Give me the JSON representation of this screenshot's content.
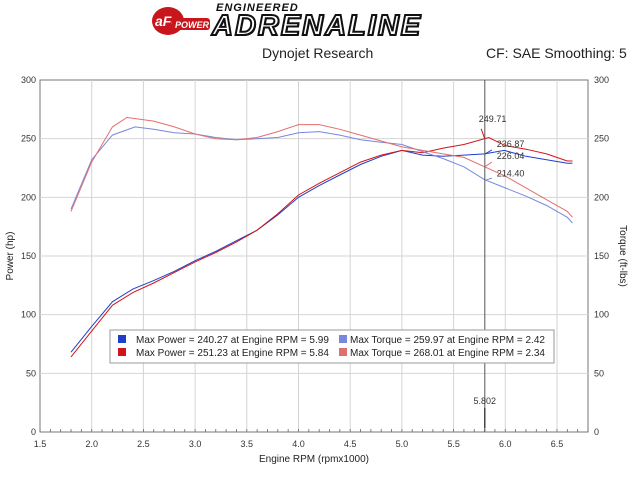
{
  "header": {
    "logo_text": "aFe POWER",
    "brand_small": "ENGINEERED",
    "brand_big": "ADRENALINE",
    "source": "Dynojet Research",
    "correction": "CF: SAE Smoothing: 5"
  },
  "colors": {
    "blue": "#1f3fc8",
    "red": "#d0151a",
    "light_blue": "#7788dd",
    "light_red": "#e07070",
    "cursor": "#555555"
  },
  "chart_data": {
    "type": "line",
    "xlabel": "Engine RPM (rpmx1000)",
    "ylabel_left": "Power (hp)",
    "ylabel_right": "Torque (ft-lbs)",
    "xlim": [
      1.5,
      6.8
    ],
    "ylim": [
      0,
      300
    ],
    "x_ticks": [
      "1.5",
      "2.0",
      "2.5",
      "3.0",
      "3.5",
      "4.0",
      "4.5",
      "5.0",
      "5.5",
      "6.0",
      "6.5"
    ],
    "y_ticks": [
      "0",
      "50",
      "100",
      "150",
      "200",
      "250",
      "300"
    ],
    "cursor": {
      "x": 5.802,
      "label": "5.802"
    },
    "cursor_labels": [
      {
        "text": "249.71",
        "series": "red-power",
        "x": 5.802,
        "y": 249.71
      },
      {
        "text": "236.87",
        "series": "blue-power",
        "x": 5.802,
        "y": 236.87
      },
      {
        "text": "226.04",
        "series": "red-torque",
        "x": 5.802,
        "y": 226.04
      },
      {
        "text": "214.40",
        "series": "blue-torque",
        "x": 5.802,
        "y": 214.4
      }
    ],
    "legend": [
      {
        "text": "Max Power = 240.27 at Engine RPM = 5.99",
        "color": "#1f3fc8"
      },
      {
        "text": "Max Power = 251.23 at Engine RPM = 5.84",
        "color": "#d0151a"
      },
      {
        "text": "Max Torque = 259.97 at Engine RPM = 2.42",
        "color": "#7788dd"
      },
      {
        "text": "Max Torque = 268.01 at Engine RPM = 2.34",
        "color": "#e07070"
      }
    ],
    "series": [
      {
        "id": "blue-power",
        "color": "#1f3fc8",
        "x": [
          1.8,
          2.0,
          2.2,
          2.4,
          2.6,
          2.8,
          3.0,
          3.2,
          3.4,
          3.6,
          3.8,
          4.0,
          4.2,
          4.4,
          4.6,
          4.8,
          5.0,
          5.2,
          5.4,
          5.6,
          5.8,
          5.99,
          6.2,
          6.4,
          6.6,
          6.65
        ],
        "y": [
          68,
          90,
          111,
          122,
          129,
          137,
          146,
          154,
          163,
          172,
          185,
          200,
          210,
          219,
          228,
          235,
          240,
          236,
          235,
          236,
          237,
          240,
          235,
          232,
          229,
          229
        ]
      },
      {
        "id": "red-power",
        "color": "#d0151a",
        "x": [
          1.8,
          2.0,
          2.2,
          2.4,
          2.6,
          2.8,
          3.0,
          3.2,
          3.4,
          3.6,
          3.8,
          4.0,
          4.2,
          4.4,
          4.6,
          4.8,
          5.0,
          5.2,
          5.4,
          5.6,
          5.84,
          6.0,
          6.2,
          6.4,
          6.6,
          6.65
        ],
        "y": [
          64,
          86,
          108,
          119,
          127,
          136,
          145,
          153,
          162,
          172,
          186,
          202,
          212,
          221,
          230,
          236,
          240,
          238,
          242,
          245,
          251,
          244,
          241,
          237,
          231,
          231
        ]
      },
      {
        "id": "blue-torque",
        "color": "#7788dd",
        "x": [
          1.8,
          2.0,
          2.2,
          2.42,
          2.6,
          2.8,
          3.0,
          3.2,
          3.4,
          3.6,
          3.8,
          4.0,
          4.2,
          4.4,
          4.6,
          4.8,
          5.0,
          5.2,
          5.4,
          5.6,
          5.8,
          6.0,
          6.2,
          6.4,
          6.6,
          6.65
        ],
        "y": [
          190,
          232,
          253,
          260,
          258,
          255,
          254,
          251,
          249,
          250,
          251,
          255,
          256,
          253,
          249,
          247,
          245,
          239,
          233,
          226,
          215,
          208,
          201,
          193,
          183,
          178
        ]
      },
      {
        "id": "red-torque",
        "color": "#e07070",
        "x": [
          1.8,
          2.0,
          2.2,
          2.34,
          2.6,
          2.8,
          3.0,
          3.2,
          3.4,
          3.6,
          3.8,
          4.0,
          4.2,
          4.4,
          4.6,
          4.8,
          5.0,
          5.2,
          5.4,
          5.6,
          5.8,
          6.0,
          6.2,
          6.4,
          6.6,
          6.65
        ],
        "y": [
          188,
          230,
          260,
          268,
          265,
          260,
          254,
          250,
          249,
          251,
          256,
          262,
          262,
          258,
          253,
          248,
          243,
          240,
          237,
          234,
          226,
          218,
          208,
          198,
          188,
          183
        ]
      }
    ]
  }
}
